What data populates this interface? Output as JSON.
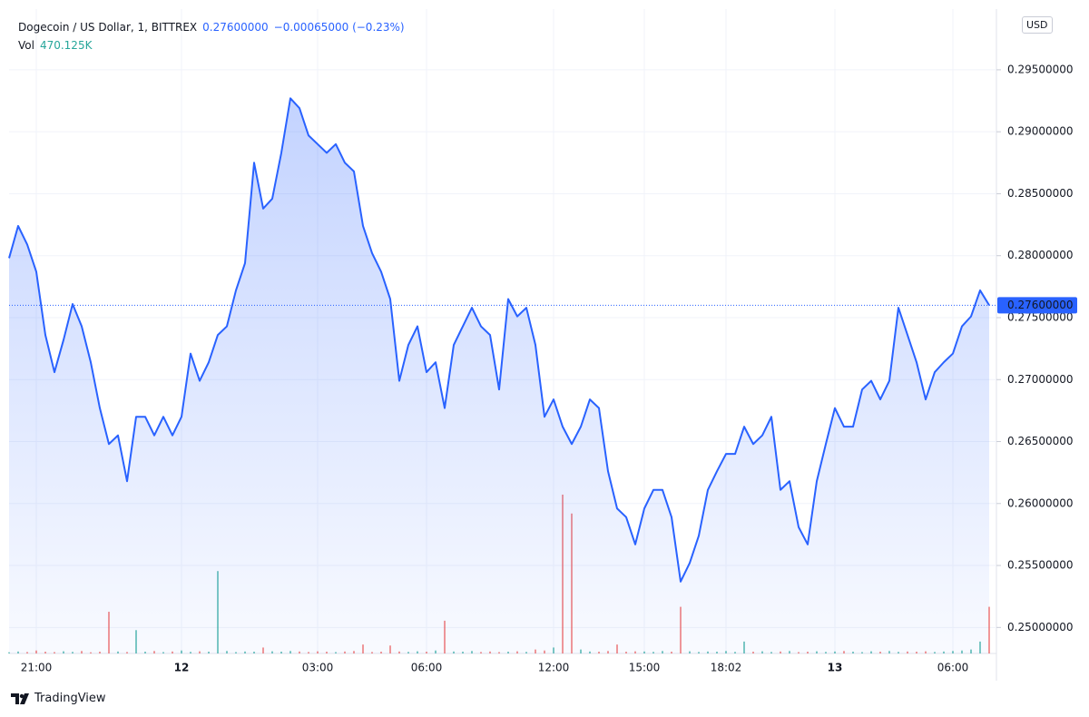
{
  "header": {
    "symbol": "Dogecoin / US Dollar, 1, BITTREX",
    "change": "−0.00065000 (−0.23%)",
    "vol_label": "Vol",
    "vol": "470.125K"
  },
  "currency": "USD",
  "brand": "TradingView",
  "chart_data": {
    "type": "line",
    "color": "#2962ff",
    "grid": true,
    "categories": [
      null,
      null,
      null,
      "21:00",
      null,
      null,
      null,
      null,
      null,
      null,
      null,
      null,
      null,
      null,
      null,
      null,
      null,
      null,
      null,
      "12",
      null,
      null,
      null,
      null,
      null,
      null,
      null,
      null,
      null,
      null,
      null,
      null,
      null,
      null,
      "03:00",
      null,
      null,
      null,
      null,
      null,
      null,
      null,
      null,
      null,
      null,
      null,
      "06:00",
      null,
      null,
      null,
      null,
      null,
      null,
      null,
      null,
      null,
      null,
      null,
      null,
      null,
      "12:00",
      null,
      null,
      null,
      null,
      null,
      null,
      null,
      null,
      null,
      "15:00",
      null,
      null,
      null,
      null,
      null,
      null,
      null,
      null,
      "18:02",
      null,
      null,
      null,
      null,
      null,
      null,
      null,
      null,
      null,
      null,
      null,
      "13",
      null,
      null,
      null,
      null,
      null,
      null,
      null,
      null,
      null,
      null,
      null,
      null,
      "06:00",
      null,
      null,
      null,
      null
    ],
    "series": [
      {
        "values": [
          0.2798,
          0.2824,
          0.2809,
          0.2787,
          0.2736,
          0.2706,
          0.2732,
          0.2761,
          0.2743,
          0.2714,
          0.2677,
          0.2648,
          0.2655,
          0.2618,
          0.267,
          0.267,
          0.2655,
          0.267,
          0.2655,
          0.267,
          0.2721,
          0.2699,
          0.2714,
          0.2736,
          0.2743,
          0.2772,
          0.2794,
          0.2875,
          0.2838,
          0.2846,
          0.2883,
          0.2927,
          0.2919,
          0.2897,
          0.289,
          0.2883,
          0.289,
          0.2875,
          0.2868,
          0.2824,
          0.2802,
          0.2787,
          0.2765,
          0.2699,
          0.2728,
          0.2743,
          0.2706,
          0.2714,
          0.2677,
          0.2728,
          0.2743,
          0.2758,
          0.2743,
          0.2736,
          0.2692,
          0.2765,
          0.2751,
          0.2758,
          0.2728,
          0.267,
          0.2684,
          0.2662,
          0.2648,
          0.2662,
          0.2684,
          0.2677,
          0.2626,
          0.2596,
          0.2589,
          0.2567,
          0.2596,
          0.2611,
          0.2611,
          0.2589,
          0.2537,
          0.2552,
          0.2574,
          0.2611,
          0.2626,
          0.264,
          0.264,
          0.2662,
          0.2648,
          0.2655,
          0.267,
          0.2611,
          0.2618,
          0.2581,
          0.2567,
          0.2618,
          0.2648,
          0.2677,
          0.2662,
          0.2662,
          0.2692,
          0.2699,
          0.2684,
          0.2699,
          0.2758,
          0.2736,
          0.2714,
          0.2684,
          0.2706,
          0.2714,
          0.2721,
          0.2743,
          0.2751,
          0.2772,
          0.276
        ]
      }
    ],
    "volume": {
      "up_color": "#26a69a",
      "down_color": "#ef5350",
      "values": [
        12,
        20,
        15,
        30,
        18,
        14,
        22,
        16,
        25,
        12,
        18,
        420,
        20,
        15,
        235,
        18,
        25,
        14,
        20,
        30,
        16,
        22,
        18,
        830,
        25,
        14,
        20,
        18,
        60,
        22,
        18,
        25,
        20,
        15,
        22,
        18,
        14,
        20,
        25,
        90,
        15,
        18,
        80,
        20,
        16,
        22,
        18,
        30,
        330,
        20,
        18,
        25,
        15,
        20,
        14,
        18,
        22,
        16,
        40,
        30,
        60,
        1600,
        1410,
        40,
        20,
        18,
        25,
        90,
        18,
        22,
        20,
        16,
        25,
        18,
        470,
        22,
        15,
        20,
        18,
        25,
        16,
        120,
        18,
        22,
        15,
        20,
        25,
        14,
        18,
        22,
        16,
        20,
        25,
        18,
        14,
        22,
        18,
        25,
        16,
        20,
        18,
        22,
        15,
        20,
        25,
        30,
        40,
        120,
        470.125
      ]
    },
    "ylim": [
      0.2479,
      0.2999
    ],
    "yticks": [
      {
        "value": 0.25,
        "label": "0.25000000"
      },
      {
        "value": 0.255,
        "label": "0.25500000"
      },
      {
        "value": 0.26,
        "label": "0.26000000"
      },
      {
        "value": 0.265,
        "label": "0.26500000"
      },
      {
        "value": 0.27,
        "label": "0.27000000"
      },
      {
        "value": 0.275,
        "label": "0.27500000"
      },
      {
        "value": 0.28,
        "label": "0.28000000"
      },
      {
        "value": 0.285,
        "label": "0.28500000"
      },
      {
        "value": 0.29,
        "label": "0.29000000"
      },
      {
        "value": 0.295,
        "label": "0.29500000"
      }
    ],
    "price_line": {
      "value": 0.276,
      "label": "0.27600000"
    }
  }
}
